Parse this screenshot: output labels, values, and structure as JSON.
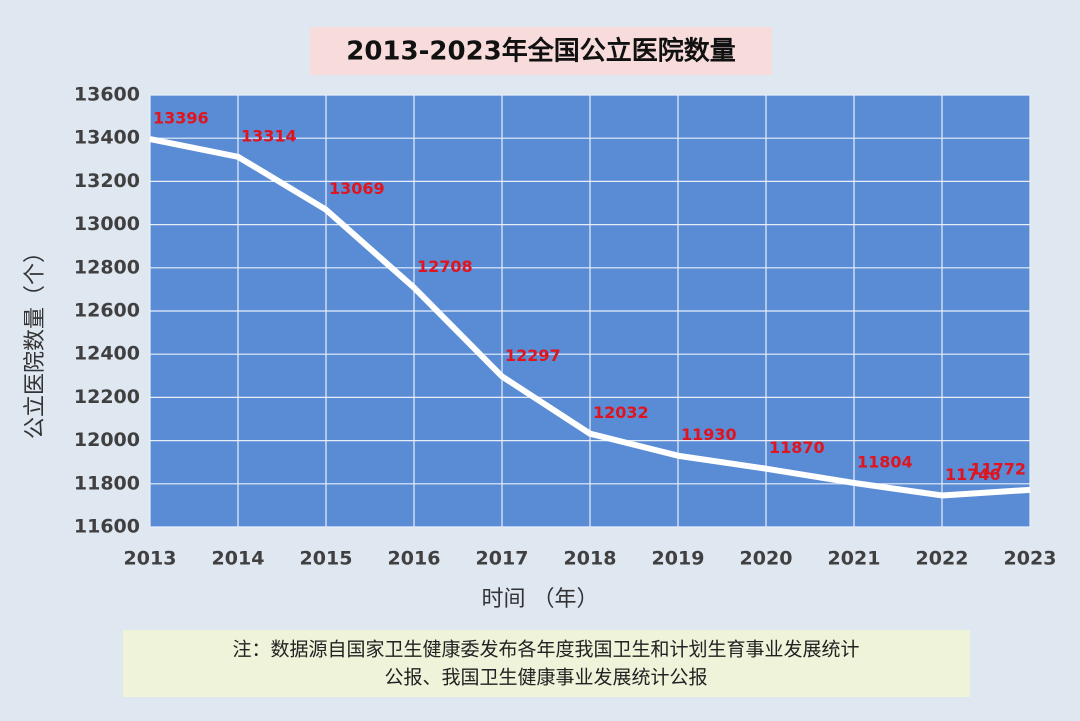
{
  "chart_data": {
    "type": "line",
    "title": "2013-2023年全国公立医院数量",
    "x_label": "时间 （年）",
    "y_label": "公立医院数量（个）",
    "x": [
      2013,
      2014,
      2015,
      2016,
      2017,
      2018,
      2019,
      2020,
      2021,
      2022,
      2023
    ],
    "series": [
      {
        "name": "公立医院数量",
        "color": "#ffffff",
        "values": [
          13396,
          13314,
          13069,
          12708,
          12297,
          12032,
          11930,
          11870,
          11804,
          11746,
          11772
        ]
      }
    ],
    "xlim": [
      2013,
      2023
    ],
    "xticks": [
      2013,
      2014,
      2015,
      2016,
      2017,
      2018,
      2019,
      2020,
      2021,
      2022,
      2023
    ],
    "ylim": [
      11600,
      13600
    ],
    "yticks": [
      11600,
      11800,
      12000,
      12200,
      12400,
      12600,
      12800,
      13000,
      13200,
      13400,
      13600
    ],
    "grid": true,
    "label_color": "#e0141e",
    "plot_background": "#5a8cd6",
    "note": [
      "注：数据源自国家卫生健康委发布各年度我国卫生和计划生育事业发展统计",
      "公报、我国卫生健康事业发展统计公报"
    ]
  }
}
